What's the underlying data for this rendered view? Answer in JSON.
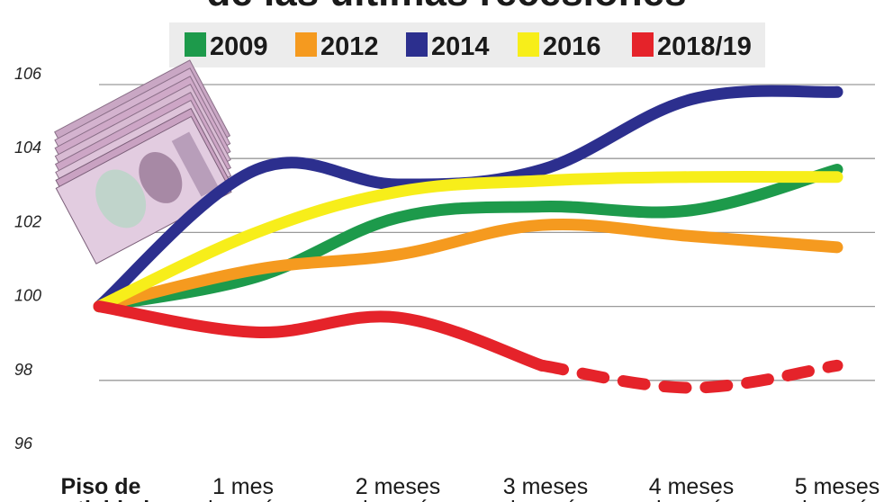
{
  "chart_data": {
    "type": "line",
    "title": "de las últimas recesiones",
    "xlabel": "",
    "ylabel": "",
    "ylim": [
      96,
      106
    ],
    "yticks": [
      96,
      98,
      100,
      102,
      104,
      106
    ],
    "grid": true,
    "legend_position": "top",
    "categories": [
      "Piso de",
      "1 mes",
      "2 meses",
      "3 meses",
      "4 meses",
      "5 meses"
    ],
    "category_sublabels": [
      "actividad",
      "después",
      "después",
      "después",
      "después",
      "después"
    ],
    "colors": {
      "2009": "#1d9a4b",
      "2012": "#f59a1f",
      "2014": "#2c2f8e",
      "2016": "#f7ee1a",
      "2018/19": "#e5232a"
    },
    "series": [
      {
        "name": "2009",
        "values": [
          100,
          100.8,
          102.4,
          102.7,
          102.6,
          103.7
        ]
      },
      {
        "name": "2012",
        "values": [
          100,
          101.0,
          101.4,
          102.2,
          101.9,
          101.6
        ]
      },
      {
        "name": "2014",
        "values": [
          100,
          103.7,
          103.3,
          103.7,
          105.6,
          105.8
        ]
      },
      {
        "name": "2016",
        "values": [
          100,
          102.0,
          103.1,
          103.4,
          103.5,
          103.5
        ]
      },
      {
        "name": "2018/19",
        "values": [
          100,
          99.3,
          99.7,
          98.4,
          97.8,
          98.4
        ],
        "projected_from_index": 3
      }
    ]
  }
}
